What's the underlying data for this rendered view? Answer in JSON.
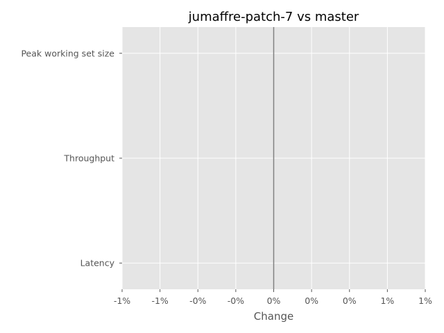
{
  "chart_data": {
    "type": "bar",
    "orientation": "horizontal",
    "title": "jumaffre-patch-7 vs master",
    "xlabel": "Change",
    "ylabel": "",
    "categories": [
      "Peak working set size",
      "Throughput",
      "Latency"
    ],
    "values": [
      0,
      0,
      0
    ],
    "xlim": [
      -0.01,
      0.01
    ],
    "x_ticks": [
      -0.01,
      -0.0075,
      -0.005,
      -0.0025,
      0,
      0.0025,
      0.005,
      0.0075,
      0.01
    ],
    "x_tick_labels": [
      "-1%",
      "-1%",
      "-0%",
      "-0%",
      "0%",
      "0%",
      "0%",
      "1%",
      "1%"
    ],
    "reference_line": 0,
    "grid": true,
    "style": "ggplot",
    "colors": {
      "plot_background": "#e5e5e5",
      "grid": "#ffffff",
      "reference_line": "#808080",
      "tick_text": "#555555",
      "title_text": "#000000"
    }
  }
}
